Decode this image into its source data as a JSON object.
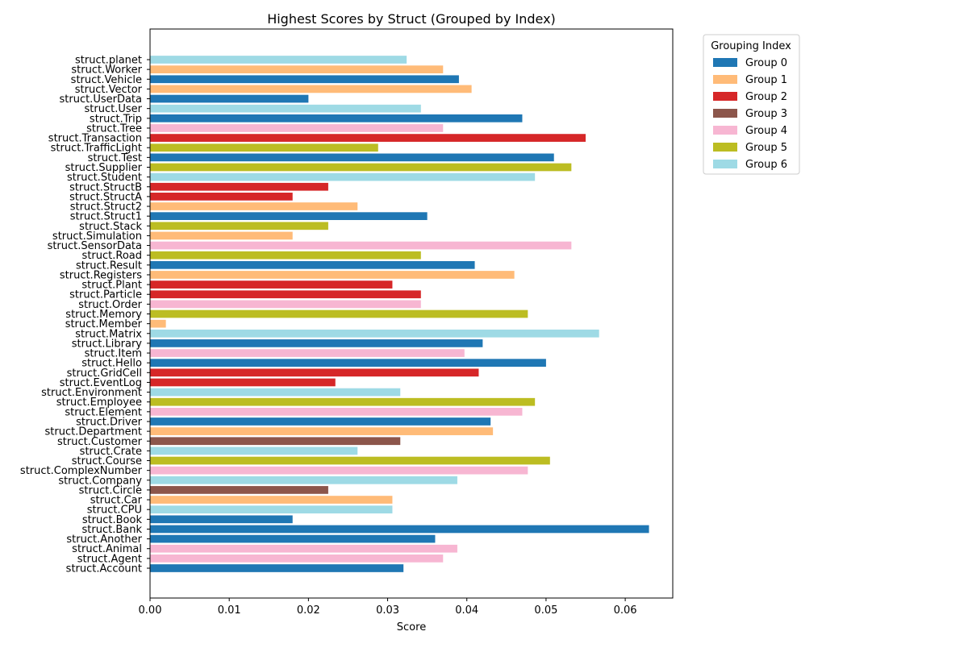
{
  "chart_data": {
    "type": "bar",
    "orientation": "horizontal",
    "title": "Highest Scores by Struct (Grouped by Index)",
    "xlabel": "Score",
    "ylabel": "",
    "xlim": [
      0,
      0.066
    ],
    "xticks": [
      0.0,
      0.01,
      0.02,
      0.03,
      0.04,
      0.05,
      0.06
    ],
    "xtick_labels": [
      "0.00",
      "0.01",
      "0.02",
      "0.03",
      "0.04",
      "0.05",
      "0.06"
    ],
    "grid": false,
    "legend": {
      "title": "Grouping Index",
      "placement": "outside-top-right",
      "entries": [
        {
          "name": "Group 0",
          "color": "#1f77b4"
        },
        {
          "name": "Group 1",
          "color": "#ffbb78"
        },
        {
          "name": "Group 2",
          "color": "#d62728"
        },
        {
          "name": "Group 3",
          "color": "#8c564b"
        },
        {
          "name": "Group 4",
          "color": "#f7b6d2"
        },
        {
          "name": "Group 5",
          "color": "#bcbd22"
        },
        {
          "name": "Group 6",
          "color": "#9edae5"
        }
      ]
    },
    "bars": [
      {
        "label": "struct.planet",
        "value": 0.0324,
        "group": 6
      },
      {
        "label": "struct.Worker",
        "value": 0.037,
        "group": 1
      },
      {
        "label": "struct.Vehicle",
        "value": 0.039,
        "group": 0
      },
      {
        "label": "struct.Vector",
        "value": 0.0406,
        "group": 1
      },
      {
        "label": "struct.UserData",
        "value": 0.02,
        "group": 0
      },
      {
        "label": "struct.User",
        "value": 0.0342,
        "group": 6
      },
      {
        "label": "struct.Trip",
        "value": 0.047,
        "group": 0
      },
      {
        "label": "struct.Tree",
        "value": 0.037,
        "group": 4
      },
      {
        "label": "struct.Transaction",
        "value": 0.055,
        "group": 2
      },
      {
        "label": "struct.TrafficLight",
        "value": 0.0288,
        "group": 5
      },
      {
        "label": "struct.Test",
        "value": 0.051,
        "group": 0
      },
      {
        "label": "struct.Supplier",
        "value": 0.0532,
        "group": 5
      },
      {
        "label": "struct.Student",
        "value": 0.0486,
        "group": 6
      },
      {
        "label": "struct.StructB",
        "value": 0.0225,
        "group": 2
      },
      {
        "label": "struct.StructA",
        "value": 0.018,
        "group": 2
      },
      {
        "label": "struct.Struct2",
        "value": 0.0262,
        "group": 1
      },
      {
        "label": "struct.Struct1",
        "value": 0.035,
        "group": 0
      },
      {
        "label": "struct.Stack",
        "value": 0.0225,
        "group": 5
      },
      {
        "label": "struct.Simulation",
        "value": 0.018,
        "group": 1
      },
      {
        "label": "struct.SensorData",
        "value": 0.0532,
        "group": 4
      },
      {
        "label": "struct.Road",
        "value": 0.0342,
        "group": 5
      },
      {
        "label": "struct.Result",
        "value": 0.041,
        "group": 0
      },
      {
        "label": "struct.Registers",
        "value": 0.046,
        "group": 1
      },
      {
        "label": "struct.Plant",
        "value": 0.0306,
        "group": 2
      },
      {
        "label": "struct.Particle",
        "value": 0.0342,
        "group": 2
      },
      {
        "label": "struct.Order",
        "value": 0.0342,
        "group": 4
      },
      {
        "label": "struct.Memory",
        "value": 0.0477,
        "group": 5
      },
      {
        "label": "struct.Member",
        "value": 0.002,
        "group": 1
      },
      {
        "label": "struct.Matrix",
        "value": 0.0567,
        "group": 6
      },
      {
        "label": "struct.Library",
        "value": 0.042,
        "group": 0
      },
      {
        "label": "struct.Item",
        "value": 0.0397,
        "group": 4
      },
      {
        "label": "struct.Hello",
        "value": 0.05,
        "group": 0
      },
      {
        "label": "struct.GridCell",
        "value": 0.0415,
        "group": 2
      },
      {
        "label": "struct.EventLog",
        "value": 0.0234,
        "group": 2
      },
      {
        "label": "struct.Environment",
        "value": 0.0316,
        "group": 6
      },
      {
        "label": "struct.Employee",
        "value": 0.0486,
        "group": 5
      },
      {
        "label": "struct.Element",
        "value": 0.047,
        "group": 4
      },
      {
        "label": "struct.Driver",
        "value": 0.043,
        "group": 0
      },
      {
        "label": "struct.Department",
        "value": 0.0433,
        "group": 1
      },
      {
        "label": "struct.Customer",
        "value": 0.0316,
        "group": 3
      },
      {
        "label": "struct.Crate",
        "value": 0.0262,
        "group": 6
      },
      {
        "label": "struct.Course",
        "value": 0.0505,
        "group": 5
      },
      {
        "label": "struct.ComplexNumber",
        "value": 0.0477,
        "group": 4
      },
      {
        "label": "struct.Company",
        "value": 0.0388,
        "group": 6
      },
      {
        "label": "struct.Circle",
        "value": 0.0225,
        "group": 3
      },
      {
        "label": "struct.Car",
        "value": 0.0306,
        "group": 1
      },
      {
        "label": "struct.CPU",
        "value": 0.0306,
        "group": 6
      },
      {
        "label": "struct.Book",
        "value": 0.018,
        "group": 0
      },
      {
        "label": "struct.Bank",
        "value": 0.063,
        "group": 0
      },
      {
        "label": "struct.Another",
        "value": 0.036,
        "group": 0
      },
      {
        "label": "struct.Animal",
        "value": 0.0388,
        "group": 4
      },
      {
        "label": "struct.Agent",
        "value": 0.037,
        "group": 4
      },
      {
        "label": "struct.Account",
        "value": 0.032,
        "group": 0
      }
    ]
  }
}
